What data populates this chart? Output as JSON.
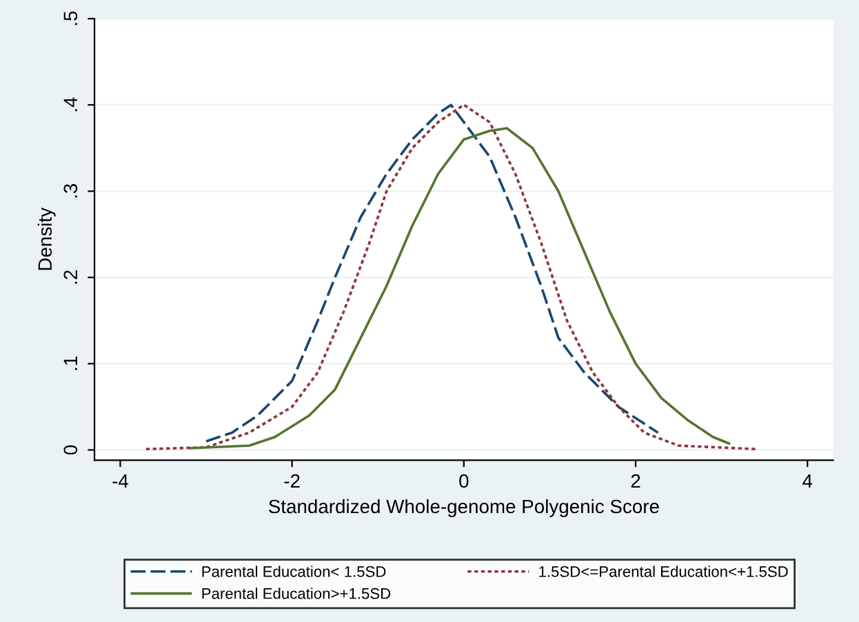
{
  "chart_data": {
    "type": "line",
    "xlabel": "Standardized Whole-genome Polygenic Score",
    "ylabel": "Density",
    "xlim": [
      -4.3,
      4.3
    ],
    "xticks": [
      -4,
      -2,
      0,
      2,
      4
    ],
    "ylim": [
      -0.012,
      0.5
    ],
    "yticks": [
      {
        "value": 0,
        "label": "0"
      },
      {
        "value": 0.1,
        "label": ".1"
      },
      {
        "value": 0.2,
        "label": ".2"
      },
      {
        "value": 0.3,
        "label": ".3"
      },
      {
        "value": 0.4,
        "label": ".4"
      },
      {
        "value": 0.5,
        "label": ".5"
      }
    ],
    "grid": "y",
    "legend": "bottom",
    "marker": "none",
    "series": [
      {
        "name": "Parental Education< 1.5SD",
        "color": "#1a476f",
        "line_style": "dashed",
        "x": [
          -3.0,
          -2.7,
          -2.4,
          -2.0,
          -1.7,
          -1.5,
          -1.2,
          -0.9,
          -0.6,
          -0.3,
          -0.15,
          0.0,
          0.3,
          0.6,
          0.9,
          1.1,
          1.4,
          1.8,
          2.26
        ],
        "values": [
          0.01,
          0.02,
          0.04,
          0.08,
          0.15,
          0.2,
          0.27,
          0.32,
          0.36,
          0.39,
          0.4,
          0.38,
          0.34,
          0.27,
          0.19,
          0.13,
          0.09,
          0.05,
          0.02
        ]
      },
      {
        "name": "1.5SD<=Parental Education<+1.5SD",
        "color": "#90353b",
        "line_style": "dotted",
        "x": [
          -3.7,
          -3.0,
          -2.5,
          -2.0,
          -1.7,
          -1.4,
          -1.1,
          -0.9,
          -0.6,
          -0.3,
          0.0,
          0.3,
          0.6,
          0.9,
          1.2,
          1.5,
          1.8,
          2.1,
          2.5,
          3.4
        ],
        "values": [
          0.001,
          0.003,
          0.02,
          0.05,
          0.09,
          0.16,
          0.24,
          0.3,
          0.35,
          0.38,
          0.4,
          0.38,
          0.32,
          0.24,
          0.15,
          0.09,
          0.05,
          0.02,
          0.005,
          0.001
        ]
      },
      {
        "name": "Parental Education>+1.5SD",
        "color": "#55752f",
        "line_style": "solid",
        "x": [
          -3.2,
          -2.5,
          -2.2,
          -1.8,
          -1.5,
          -1.2,
          -0.9,
          -0.6,
          -0.3,
          0.0,
          0.3,
          0.5,
          0.8,
          1.1,
          1.4,
          1.7,
          2.0,
          2.3,
          2.6,
          2.9,
          3.1
        ],
        "values": [
          0.002,
          0.005,
          0.015,
          0.04,
          0.07,
          0.13,
          0.19,
          0.26,
          0.32,
          0.36,
          0.37,
          0.373,
          0.35,
          0.3,
          0.23,
          0.16,
          0.1,
          0.06,
          0.035,
          0.015,
          0.007
        ]
      }
    ]
  }
}
